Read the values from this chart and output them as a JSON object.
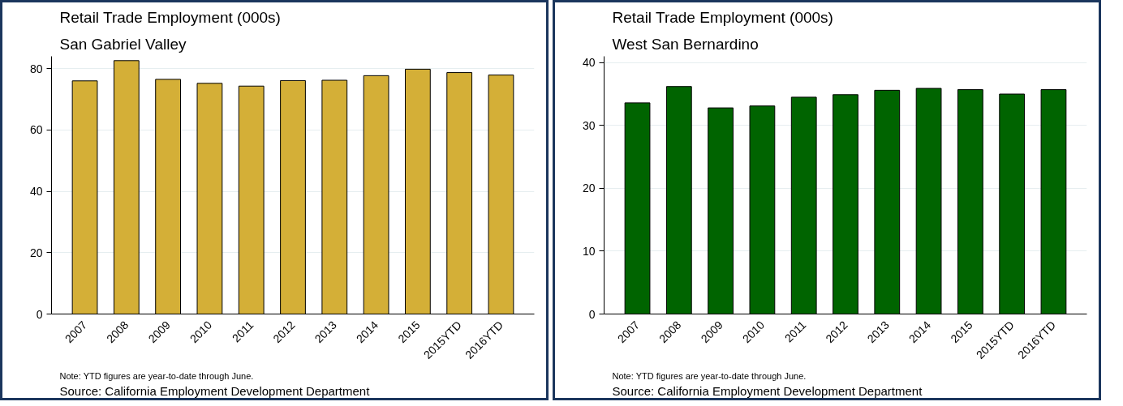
{
  "chart_data": [
    {
      "type": "bar",
      "title": "Retail Trade Employment (000s)",
      "subtitle": "San Gabriel Valley",
      "categories": [
        "2007",
        "2008",
        "2009",
        "2010",
        "2011",
        "2012",
        "2013",
        "2014",
        "2015",
        "2015YTD",
        "2016YTD"
      ],
      "values": [
        76.0,
        82.6,
        76.5,
        75.2,
        74.3,
        76.1,
        76.2,
        77.7,
        79.8,
        78.7,
        77.9
      ],
      "color": "#d4af37",
      "ylim": [
        0,
        84
      ],
      "yticks": [
        0,
        20,
        40,
        60,
        80
      ],
      "grid": "y",
      "annotations": [
        "Note: YTD figures are year-to-date through June.",
        "Source: California Employment Development Department"
      ]
    },
    {
      "type": "bar",
      "title": "Retail Trade Employment (000s)",
      "subtitle": "West San Bernardino",
      "categories": [
        "2007",
        "2008",
        "2009",
        "2010",
        "2011",
        "2012",
        "2013",
        "2014",
        "2015",
        "2015YTD",
        "2016YTD"
      ],
      "values": [
        33.6,
        36.2,
        32.8,
        33.1,
        34.5,
        34.9,
        35.6,
        35.9,
        35.7,
        35.0,
        35.7
      ],
      "color": "#006400",
      "ylim": [
        0,
        41
      ],
      "yticks": [
        0,
        10,
        20,
        30,
        40
      ],
      "grid": "y",
      "annotations": [
        "Note: YTD figures are year-to-date through June.",
        "Source: California Employment Development Department"
      ]
    }
  ]
}
